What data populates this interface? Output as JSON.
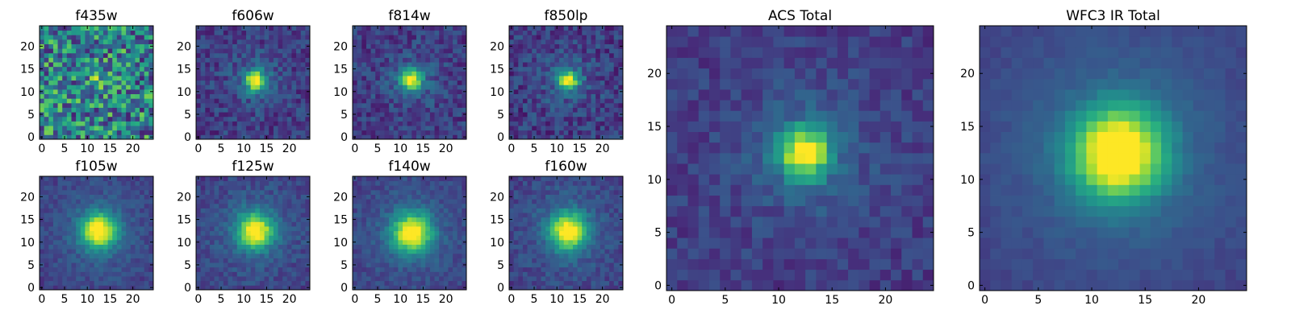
{
  "chart_data": [
    {
      "type": "heatmap",
      "title": "f435w",
      "xticks": [
        0,
        5,
        10,
        15,
        20
      ],
      "yticks": [
        0,
        5,
        10,
        15,
        20
      ],
      "xlim": [
        0,
        25
      ],
      "ylim": [
        0,
        25
      ],
      "grid": false,
      "colormap": "viridis",
      "peak": [
        12,
        12
      ],
      "sigma": 1.0,
      "contrast": 0.15,
      "noise": 0.55
    },
    {
      "type": "heatmap",
      "title": "f606w",
      "xticks": [
        0,
        5,
        10,
        15,
        20
      ],
      "yticks": [
        0,
        5,
        10,
        15,
        20
      ],
      "xlim": [
        0,
        25
      ],
      "ylim": [
        0,
        25
      ],
      "grid": false,
      "colormap": "viridis",
      "peak": [
        12.5,
        12.5
      ],
      "sigma": 1.5,
      "contrast": 0.75,
      "noise": 0.12
    },
    {
      "type": "heatmap",
      "title": "f814w",
      "xticks": [
        0,
        5,
        10,
        15,
        20
      ],
      "yticks": [
        0,
        5,
        10,
        15,
        20
      ],
      "xlim": [
        0,
        25
      ],
      "ylim": [
        0,
        25
      ],
      "grid": false,
      "colormap": "viridis",
      "peak": [
        12.5,
        12.5
      ],
      "sigma": 1.5,
      "contrast": 0.75,
      "noise": 0.12
    },
    {
      "type": "heatmap",
      "title": "f850lp",
      "xticks": [
        0,
        5,
        10,
        15,
        20
      ],
      "yticks": [
        0,
        5,
        10,
        15,
        20
      ],
      "xlim": [
        0,
        25
      ],
      "ylim": [
        0,
        25
      ],
      "grid": false,
      "colormap": "viridis",
      "peak": [
        12.5,
        12.5
      ],
      "sigma": 1.5,
      "contrast": 0.72,
      "noise": 0.13
    },
    {
      "type": "heatmap",
      "title": "f105w",
      "xticks": [
        0,
        5,
        10,
        15,
        20
      ],
      "yticks": [
        0,
        5,
        10,
        15,
        20
      ],
      "xlim": [
        0,
        25
      ],
      "ylim": [
        0,
        25
      ],
      "grid": false,
      "colormap": "viridis",
      "peak": [
        12.5,
        12.5
      ],
      "sigma": 2.6,
      "contrast": 0.82,
      "noise": 0.07
    },
    {
      "type": "heatmap",
      "title": "f125w",
      "xticks": [
        0,
        5,
        10,
        15,
        20
      ],
      "yticks": [
        0,
        5,
        10,
        15,
        20
      ],
      "xlim": [
        0,
        25
      ],
      "ylim": [
        0,
        25
      ],
      "grid": false,
      "colormap": "viridis",
      "peak": [
        12.5,
        12.5
      ],
      "sigma": 2.6,
      "contrast": 0.8,
      "noise": 0.08
    },
    {
      "type": "heatmap",
      "title": "f140w",
      "xticks": [
        0,
        5,
        10,
        15,
        20
      ],
      "yticks": [
        0,
        5,
        10,
        15,
        20
      ],
      "xlim": [
        0,
        25
      ],
      "ylim": [
        0,
        25
      ],
      "grid": false,
      "colormap": "viridis",
      "peak": [
        12.5,
        12
      ],
      "sigma": 2.8,
      "contrast": 0.82,
      "noise": 0.07
    },
    {
      "type": "heatmap",
      "title": "f160w",
      "xticks": [
        0,
        5,
        10,
        15,
        20
      ],
      "yticks": [
        0,
        5,
        10,
        15,
        20
      ],
      "xlim": [
        0,
        25
      ],
      "ylim": [
        0,
        25
      ],
      "grid": false,
      "colormap": "viridis",
      "peak": [
        12.5,
        12.5
      ],
      "sigma": 2.7,
      "contrast": 0.8,
      "noise": 0.08
    },
    {
      "type": "heatmap",
      "title": "ACS Total",
      "xticks": [
        0,
        5,
        10,
        15,
        20
      ],
      "yticks": [
        0,
        5,
        10,
        15,
        20
      ],
      "xlim": [
        0,
        25
      ],
      "ylim": [
        0,
        25
      ],
      "grid": false,
      "colormap": "viridis",
      "peak": [
        12.5,
        12.5
      ],
      "sigma": 1.6,
      "contrast": 0.8,
      "noise": 0.08
    },
    {
      "type": "heatmap",
      "title": "WFC3 IR Total",
      "xticks": [
        0,
        5,
        10,
        15,
        20
      ],
      "yticks": [
        0,
        5,
        10,
        15,
        20
      ],
      "xlim": [
        0,
        25
      ],
      "ylim": [
        0,
        25
      ],
      "grid": false,
      "colormap": "viridis",
      "peak": [
        12.5,
        12.5
      ],
      "sigma": 2.9,
      "contrast": 0.9,
      "noise": 0.03
    }
  ],
  "colors": {
    "viridis_low": "#440154",
    "viridis_mid": "#21918c",
    "viridis_high": "#fde725"
  }
}
